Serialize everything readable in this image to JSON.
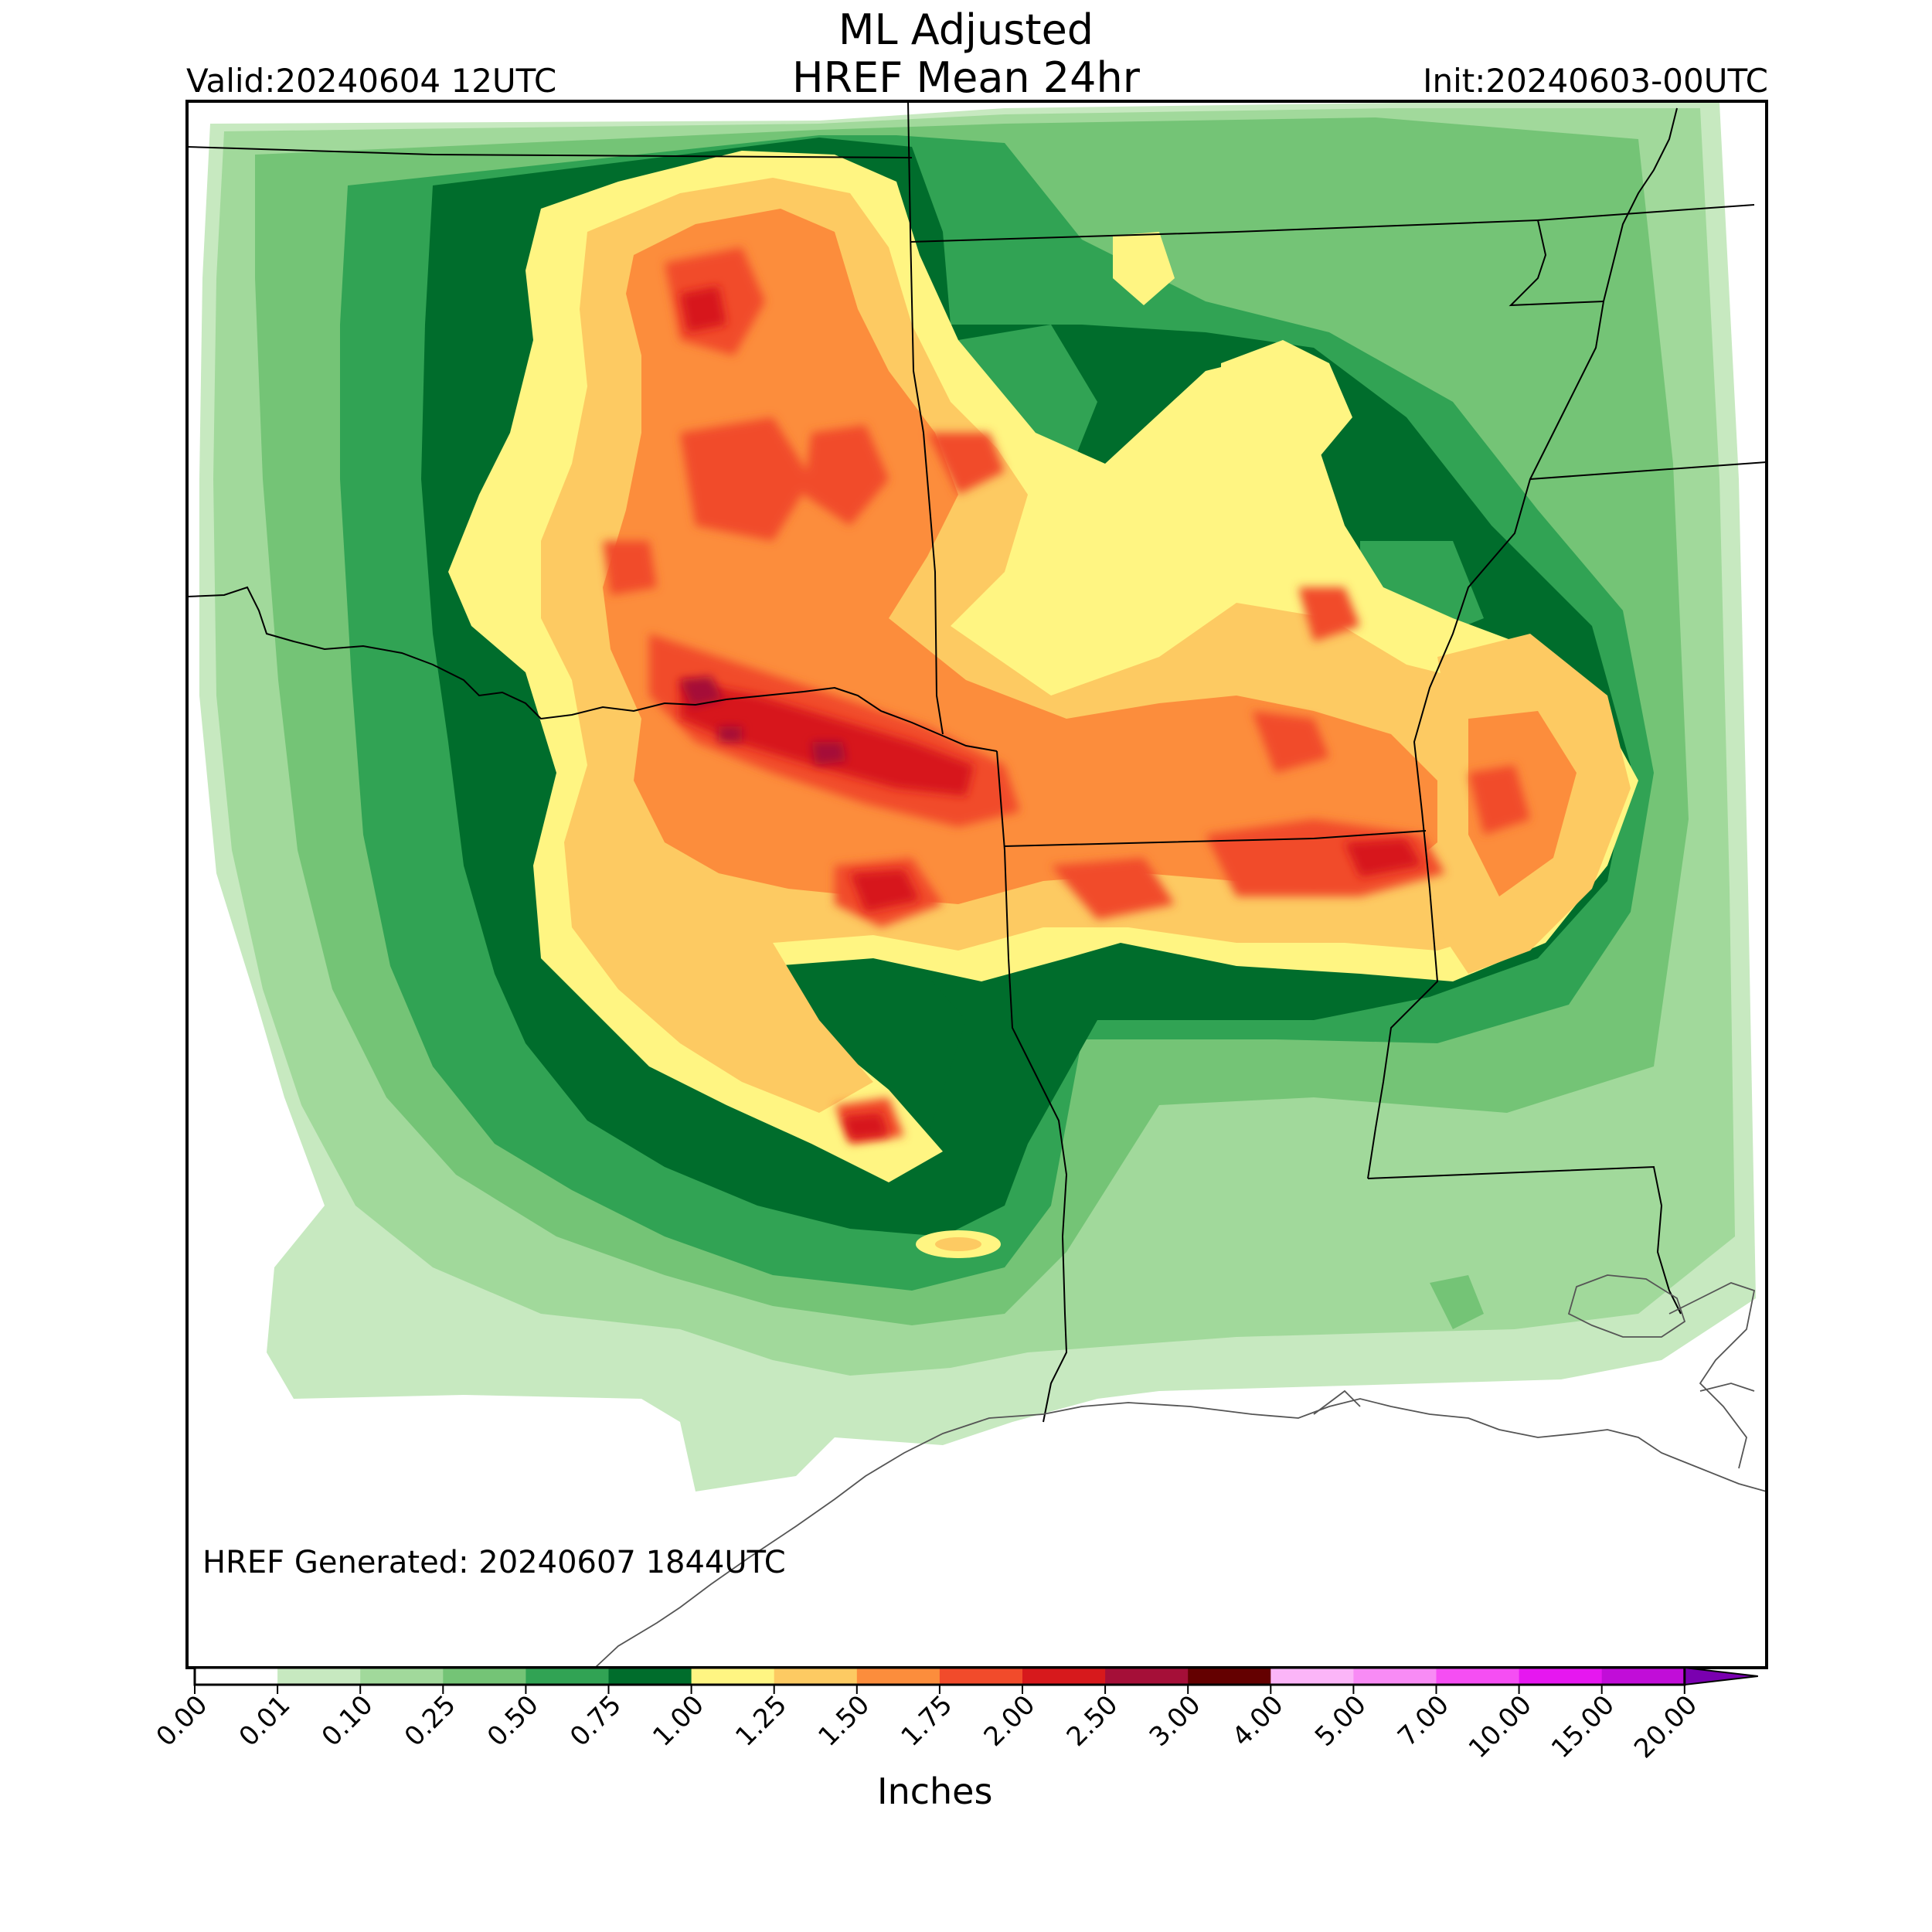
{
  "header": {
    "title_line1": "ML Adjusted",
    "title_line2": "HREF Mean 24hr",
    "valid": "Valid:20240604 12UTC",
    "init": "Init:20240603-00UTC"
  },
  "footer": {
    "generated": "HREF Generated: 20240607 1844UTC"
  },
  "colorbar": {
    "units_label": "Inches",
    "ticks": [
      "0.00",
      "0.01",
      "0.10",
      "0.25",
      "0.50",
      "0.75",
      "1.00",
      "1.25",
      "1.50",
      "1.75",
      "2.00",
      "2.50",
      "3.00",
      "4.00",
      "5.00",
      "7.00",
      "10.00",
      "15.00",
      "20.00"
    ],
    "colors": [
      "#ffffff",
      "#c7e9c0",
      "#a1d99b",
      "#74c476",
      "#31a354",
      "#006d2c",
      "#fff582",
      "#fdca62",
      "#fc8d3c",
      "#f14b2b",
      "#d7191c",
      "#a50f38",
      "#640000",
      "#fbb5f8",
      "#f88bf5",
      "#f54ef3",
      "#e617f0",
      "#c10dd8",
      "#8b00c4"
    ],
    "extend_color": "#7a00b0"
  },
  "map": {
    "features": [
      "state-boundaries",
      "coastline",
      "24hr-precipitation-field"
    ],
    "max_region": "north-central Texas / southern Oklahoma",
    "secondary_max_region": "northern Louisiana / southern Arkansas"
  }
}
